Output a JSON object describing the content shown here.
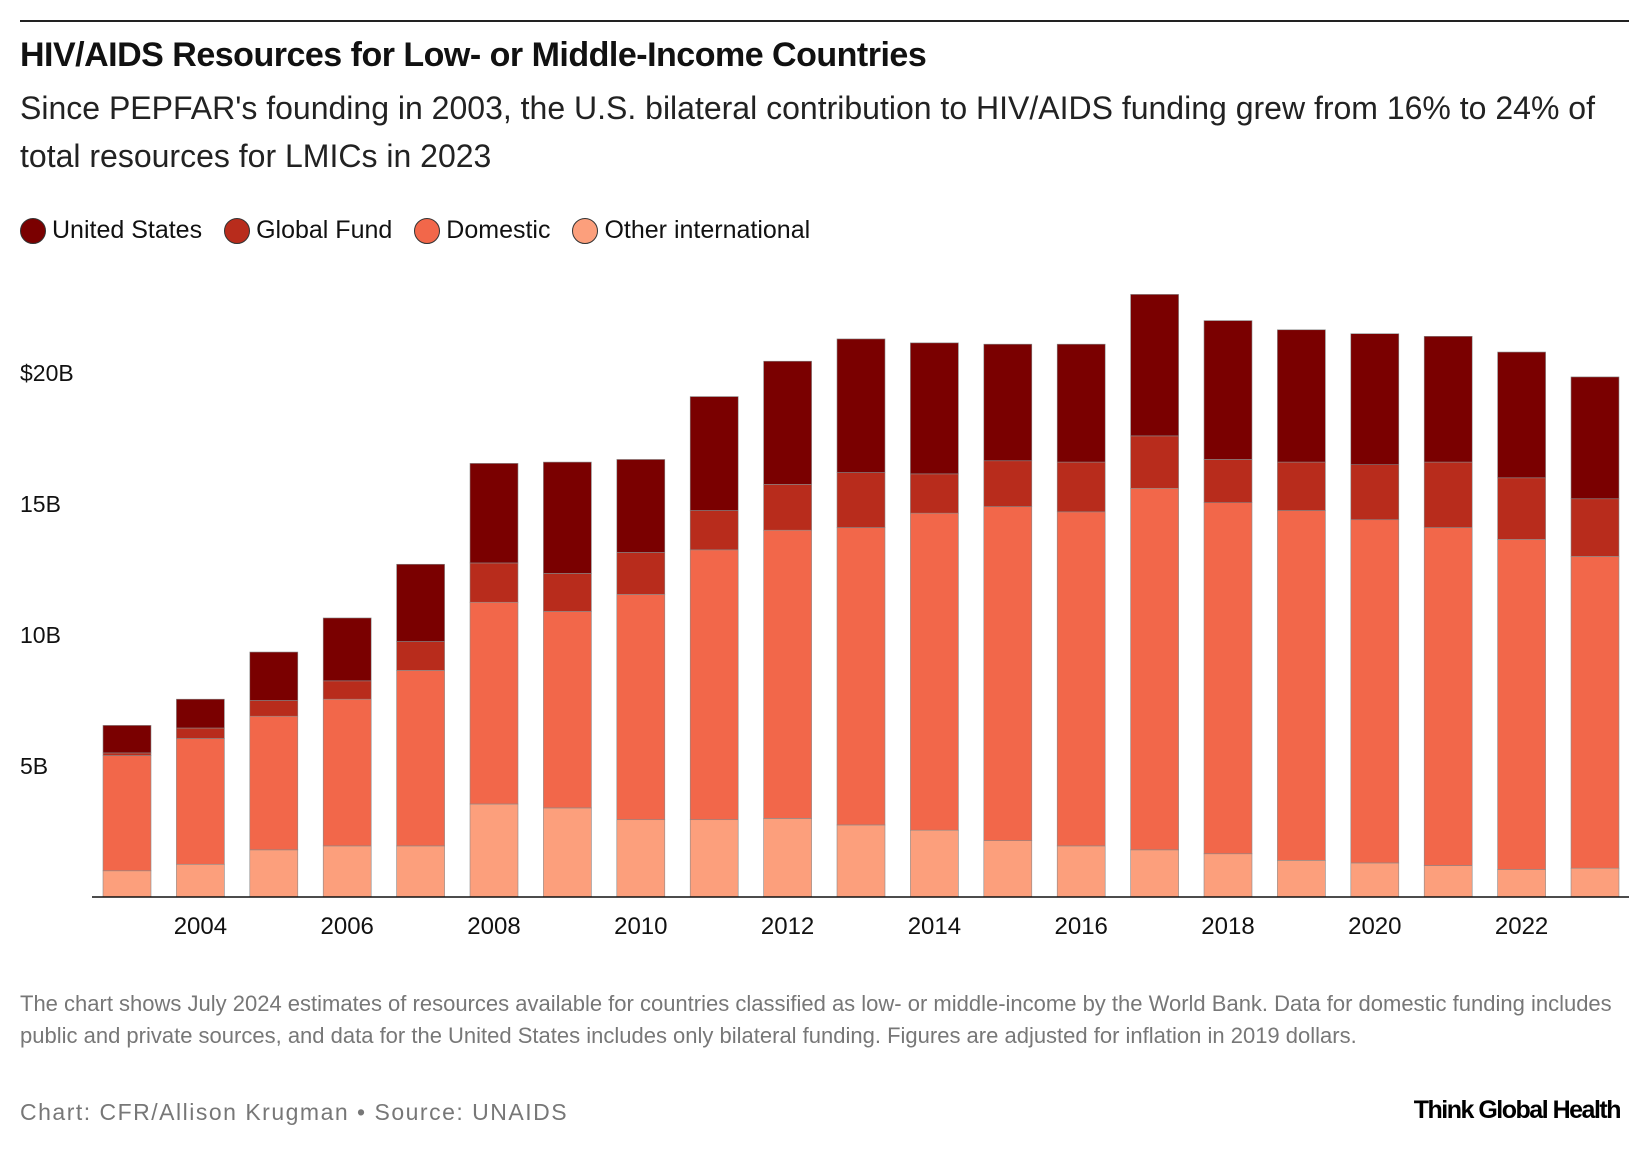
{
  "chart_data": {
    "type": "bar",
    "stacked": true,
    "title": "HIV/AIDS Resources for Low- or Middle-Income Countries",
    "subtitle": "Since PEPFAR's founding in 2003, the U.S. bilateral contribution to HIV/AIDS funding grew from 16% to 24% of total resources for LMICs in 2023",
    "categories": [
      2003,
      2004,
      2005,
      2006,
      2007,
      2008,
      2009,
      2010,
      2011,
      2012,
      2013,
      2014,
      2015,
      2016,
      2017,
      2018,
      2019,
      2020,
      2021,
      2022,
      2023
    ],
    "x_tick_labels": [
      "2004",
      "2006",
      "2008",
      "2010",
      "2012",
      "2014",
      "2016",
      "2018",
      "2020",
      "2022"
    ],
    "y_tick_values": [
      5,
      10,
      15,
      20
    ],
    "y_tick_labels": [
      "5B",
      "10B",
      "15B",
      "$20B"
    ],
    "ylim": [
      0,
      23
    ],
    "units": "billions USD (2019 dollars)",
    "legend_position": "top-left",
    "grid": false,
    "series": [
      {
        "name": "Other international",
        "color": "#fc9f7c",
        "values": [
          1.0,
          1.25,
          1.8,
          1.95,
          1.95,
          3.55,
          3.4,
          2.95,
          2.95,
          3.0,
          2.75,
          2.55,
          2.15,
          1.95,
          1.8,
          1.65,
          1.4,
          1.3,
          1.2,
          1.05,
          1.1
        ]
      },
      {
        "name": "Domestic",
        "color": "#f2674a",
        "values": [
          4.4,
          4.8,
          5.1,
          5.6,
          6.7,
          7.7,
          7.5,
          8.6,
          10.3,
          11.0,
          11.35,
          12.1,
          12.75,
          12.75,
          13.8,
          13.4,
          13.35,
          13.1,
          12.9,
          12.6,
          11.9
        ]
      },
      {
        "name": "Global Fund",
        "color": "#b82c1c",
        "values": [
          0.1,
          0.4,
          0.6,
          0.7,
          1.1,
          1.5,
          1.45,
          1.6,
          1.5,
          1.75,
          2.1,
          1.5,
          1.75,
          1.9,
          2.0,
          1.65,
          1.85,
          2.1,
          2.5,
          2.35,
          2.2
        ]
      },
      {
        "name": "United States",
        "color": "#7a0000",
        "values": [
          1.05,
          1.1,
          1.85,
          2.4,
          2.95,
          3.8,
          4.25,
          3.55,
          4.35,
          4.7,
          5.1,
          5.0,
          4.45,
          4.5,
          5.4,
          5.3,
          5.05,
          5.0,
          4.8,
          4.8,
          4.65
        ]
      }
    ]
  },
  "legend": [
    "United States",
    "Global Fund",
    "Domestic",
    "Other international"
  ],
  "legend_colors": [
    "#7a0000",
    "#b82c1c",
    "#f2674a",
    "#fc9f7c"
  ],
  "note": "The chart shows July 2024 estimates of resources available for countries classified as low- or middle-income by the World Bank. Data for domestic funding includes public and private sources, and data for the United States includes only bilateral funding. Figures are adjusted for inflation in 2019 dollars.",
  "credit": "Chart: CFR/Allison Krugman • Source: UNAIDS",
  "logo": "Think Global Health"
}
